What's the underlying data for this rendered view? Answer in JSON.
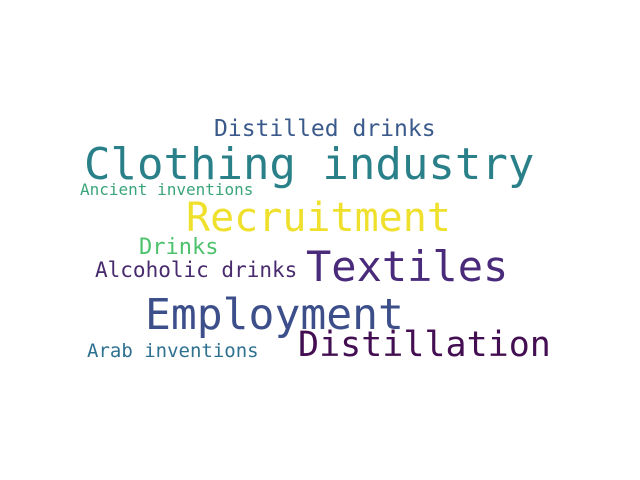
{
  "words": {
    "distilled_drinks": {
      "text": "Distilled drinks",
      "color": "#3b5a8c"
    },
    "clothing_industry": {
      "text": "Clothing industry",
      "color": "#2a8089"
    },
    "ancient_inventions": {
      "text": "Ancient inventions",
      "color": "#3aa57a"
    },
    "recruitment": {
      "text": "Recruitment",
      "color": "#f0e02e"
    },
    "drinks": {
      "text": "Drinks",
      "color": "#4cc26c"
    },
    "textiles": {
      "text": "Textiles",
      "color": "#4a2a7a"
    },
    "alcoholic_drinks": {
      "text": "Alcoholic drinks",
      "color": "#482b6e"
    },
    "employment": {
      "text": "Employment",
      "color": "#3d4f8a"
    },
    "distillation": {
      "text": "Distillation",
      "color": "#440f52"
    },
    "arab_inventions": {
      "text": "Arab inventions",
      "color": "#2e7090"
    }
  }
}
